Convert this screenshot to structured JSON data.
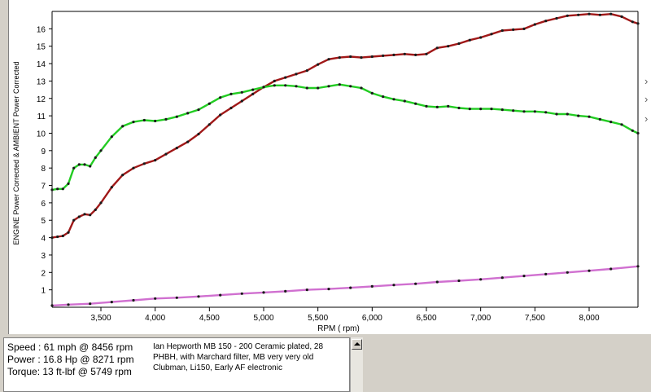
{
  "chart_data": {
    "type": "line",
    "xlabel": "RPM ( rpm)",
    "ylabel": "ENGINE Power Corrected & AMBIENT Power Corrected",
    "xlim": [
      3050,
      8450
    ],
    "ylim": [
      0,
      17
    ],
    "x_ticks": [
      "3,500",
      "4,000",
      "4,500",
      "5,000",
      "5,500",
      "6,000",
      "6,500",
      "7,000",
      "7,500",
      "8,000"
    ],
    "x_tick_values": [
      3500,
      4000,
      4500,
      5000,
      5500,
      6000,
      6500,
      7000,
      7500,
      8000
    ],
    "y_ticks": [
      "1",
      "2",
      "3",
      "4",
      "5",
      "6",
      "7",
      "8",
      "9",
      "10",
      "11",
      "12",
      "13",
      "14",
      "15",
      "16"
    ],
    "grid": false,
    "series": [
      {
        "key": "power",
        "color": "#a01818",
        "x": [
          3050,
          3100,
          3150,
          3200,
          3250,
          3300,
          3350,
          3400,
          3450,
          3500,
          3600,
          3700,
          3800,
          3900,
          4000,
          4100,
          4200,
          4300,
          4400,
          4500,
          4600,
          4700,
          4800,
          4900,
          5000,
          5100,
          5200,
          5300,
          5400,
          5500,
          5600,
          5700,
          5800,
          5900,
          6000,
          6100,
          6200,
          6300,
          6400,
          6500,
          6600,
          6700,
          6800,
          6900,
          7000,
          7100,
          7200,
          7300,
          7400,
          7500,
          7600,
          7700,
          7800,
          7900,
          8000,
          8100,
          8200,
          8300,
          8400,
          8450
        ],
        "y": [
          4.0,
          4.05,
          4.1,
          4.3,
          5.0,
          5.2,
          5.35,
          5.3,
          5.6,
          6.0,
          6.9,
          7.6,
          8.0,
          8.25,
          8.45,
          8.8,
          9.15,
          9.5,
          9.95,
          10.5,
          11.05,
          11.45,
          11.85,
          12.25,
          12.65,
          13.0,
          13.2,
          13.4,
          13.6,
          13.95,
          14.25,
          14.35,
          14.4,
          14.35,
          14.4,
          14.45,
          14.5,
          14.55,
          14.5,
          14.55,
          14.9,
          15.0,
          15.15,
          15.35,
          15.5,
          15.7,
          15.9,
          15.95,
          16.0,
          16.25,
          16.45,
          16.6,
          16.75,
          16.8,
          16.85,
          16.8,
          16.85,
          16.7,
          16.4,
          16.3
        ]
      },
      {
        "key": "ambient",
        "color": "#22cc22",
        "x": [
          3050,
          3100,
          3150,
          3200,
          3250,
          3300,
          3350,
          3400,
          3450,
          3500,
          3600,
          3700,
          3800,
          3900,
          4000,
          4100,
          4200,
          4300,
          4400,
          4500,
          4600,
          4700,
          4800,
          4900,
          5000,
          5100,
          5200,
          5300,
          5400,
          5500,
          5600,
          5700,
          5800,
          5900,
          6000,
          6100,
          6200,
          6300,
          6400,
          6500,
          6600,
          6700,
          6800,
          6900,
          7000,
          7100,
          7200,
          7300,
          7400,
          7500,
          7600,
          7700,
          7800,
          7900,
          8000,
          8100,
          8200,
          8300,
          8400,
          8450
        ],
        "y": [
          6.75,
          6.8,
          6.8,
          7.1,
          8.0,
          8.2,
          8.2,
          8.1,
          8.6,
          9.0,
          9.8,
          10.4,
          10.65,
          10.75,
          10.7,
          10.8,
          10.95,
          11.15,
          11.35,
          11.7,
          12.05,
          12.25,
          12.35,
          12.5,
          12.65,
          12.75,
          12.75,
          12.7,
          12.6,
          12.6,
          12.7,
          12.8,
          12.7,
          12.6,
          12.3,
          12.1,
          11.95,
          11.85,
          11.7,
          11.55,
          11.5,
          11.55,
          11.45,
          11.4,
          11.4,
          11.4,
          11.35,
          11.3,
          11.25,
          11.25,
          11.2,
          11.1,
          11.1,
          11.0,
          10.95,
          10.8,
          10.65,
          10.5,
          10.15,
          10.0
        ]
      },
      {
        "key": "loss",
        "color": "#d070d0",
        "x": [
          3050,
          3200,
          3400,
          3600,
          3800,
          4000,
          4200,
          4400,
          4600,
          4800,
          5000,
          5200,
          5400,
          5600,
          5800,
          6000,
          6200,
          6400,
          6600,
          6800,
          7000,
          7200,
          7400,
          7600,
          7800,
          8000,
          8200,
          8450
        ],
        "y": [
          0.1,
          0.15,
          0.2,
          0.3,
          0.4,
          0.5,
          0.55,
          0.62,
          0.7,
          0.78,
          0.85,
          0.92,
          1.0,
          1.05,
          1.12,
          1.2,
          1.28,
          1.35,
          1.45,
          1.52,
          1.6,
          1.7,
          1.8,
          1.9,
          2.0,
          2.1,
          2.2,
          2.35
        ]
      }
    ]
  },
  "info": {
    "speed": "Speed : 61 mph @ 8456 rpm",
    "power": "Power : 16.8 Hp @ 8271 rpm",
    "torque": "Torque: 13 ft-lbf @ 5749 rpm",
    "notes": "Ian Hepworth MB 150 - 200 Ceramic plated, 28 PHBH, with Marchard filter, MB very very old Clubman, Li150, Early AF electronic"
  }
}
